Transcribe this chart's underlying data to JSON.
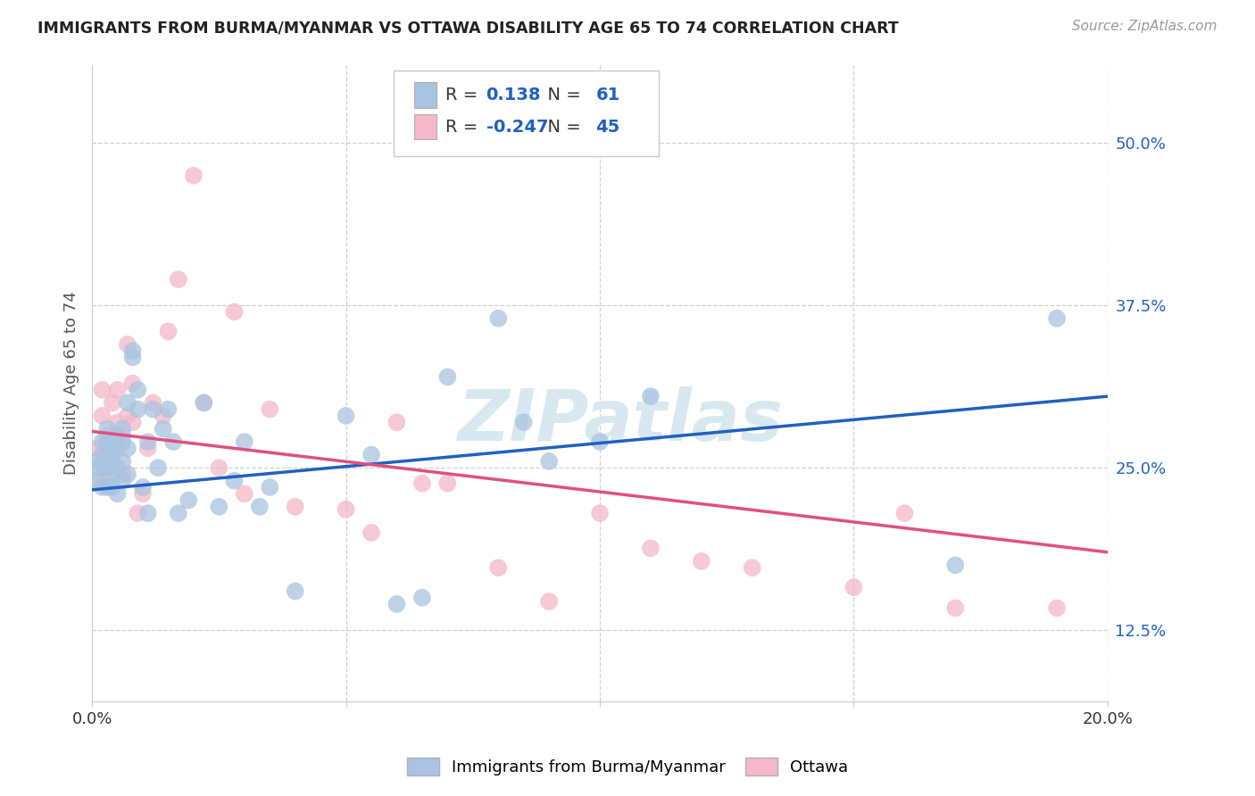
{
  "title": "IMMIGRANTS FROM BURMA/MYANMAR VS OTTAWA DISABILITY AGE 65 TO 74 CORRELATION CHART",
  "source": "Source: ZipAtlas.com",
  "ylabel": "Disability Age 65 to 74",
  "blue_label": "Immigrants from Burma/Myanmar",
  "pink_label": "Ottawa",
  "blue_R": 0.138,
  "blue_N": 61,
  "pink_R": -0.247,
  "pink_N": 45,
  "xlim": [
    0.0,
    0.2
  ],
  "ylim": [
    0.07,
    0.56
  ],
  "yticks": [
    0.125,
    0.25,
    0.375,
    0.5
  ],
  "ytick_labels": [
    "12.5%",
    "25.0%",
    "37.5%",
    "50.0%"
  ],
  "xticks": [
    0.0,
    0.05,
    0.1,
    0.15,
    0.2
  ],
  "xtick_labels": [
    "0.0%",
    "",
    "",
    "",
    "20.0%"
  ],
  "blue_line_x": [
    0.0,
    0.2
  ],
  "blue_line_y": [
    0.233,
    0.305
  ],
  "pink_line_x": [
    0.0,
    0.2
  ],
  "pink_line_y": [
    0.278,
    0.185
  ],
  "blue_x": [
    0.001,
    0.001,
    0.001,
    0.002,
    0.002,
    0.002,
    0.002,
    0.003,
    0.003,
    0.003,
    0.003,
    0.003,
    0.004,
    0.004,
    0.004,
    0.004,
    0.004,
    0.005,
    0.005,
    0.005,
    0.005,
    0.006,
    0.006,
    0.006,
    0.006,
    0.007,
    0.007,
    0.007,
    0.008,
    0.008,
    0.009,
    0.009,
    0.01,
    0.011,
    0.011,
    0.012,
    0.013,
    0.014,
    0.015,
    0.016,
    0.017,
    0.019,
    0.022,
    0.025,
    0.028,
    0.03,
    0.033,
    0.035,
    0.04,
    0.05,
    0.055,
    0.06,
    0.065,
    0.07,
    0.08,
    0.085,
    0.09,
    0.1,
    0.11,
    0.17,
    0.19
  ],
  "blue_y": [
    0.24,
    0.25,
    0.255,
    0.235,
    0.25,
    0.26,
    0.27,
    0.235,
    0.25,
    0.26,
    0.27,
    0.28,
    0.235,
    0.245,
    0.255,
    0.265,
    0.27,
    0.23,
    0.25,
    0.265,
    0.275,
    0.24,
    0.255,
    0.27,
    0.28,
    0.245,
    0.265,
    0.3,
    0.335,
    0.34,
    0.295,
    0.31,
    0.235,
    0.215,
    0.27,
    0.295,
    0.25,
    0.28,
    0.295,
    0.27,
    0.215,
    0.225,
    0.3,
    0.22,
    0.24,
    0.27,
    0.22,
    0.235,
    0.155,
    0.29,
    0.26,
    0.145,
    0.15,
    0.32,
    0.365,
    0.285,
    0.255,
    0.27,
    0.305,
    0.175,
    0.365
  ],
  "pink_x": [
    0.001,
    0.001,
    0.002,
    0.002,
    0.003,
    0.003,
    0.004,
    0.004,
    0.005,
    0.005,
    0.006,
    0.006,
    0.007,
    0.007,
    0.008,
    0.008,
    0.009,
    0.01,
    0.011,
    0.012,
    0.014,
    0.015,
    0.017,
    0.02,
    0.022,
    0.025,
    0.028,
    0.03,
    0.035,
    0.04,
    0.05,
    0.055,
    0.06,
    0.065,
    0.07,
    0.08,
    0.09,
    0.1,
    0.11,
    0.12,
    0.13,
    0.15,
    0.16,
    0.17,
    0.19
  ],
  "pink_y": [
    0.24,
    0.265,
    0.29,
    0.31,
    0.24,
    0.275,
    0.26,
    0.3,
    0.285,
    0.31,
    0.245,
    0.275,
    0.29,
    0.345,
    0.285,
    0.315,
    0.215,
    0.23,
    0.265,
    0.3,
    0.29,
    0.355,
    0.395,
    0.475,
    0.3,
    0.25,
    0.37,
    0.23,
    0.295,
    0.22,
    0.218,
    0.2,
    0.285,
    0.238,
    0.238,
    0.173,
    0.147,
    0.215,
    0.188,
    0.178,
    0.173,
    0.158,
    0.215,
    0.142,
    0.142
  ],
  "blue_color": "#a8c4e0",
  "pink_color": "#f4b8c8",
  "blue_line_color": "#2060c0",
  "pink_line_color": "#e05080",
  "bg_color": "#ffffff",
  "grid_color": "#d0d0d0",
  "title_color": "#222222",
  "watermark": "ZIPatlas",
  "watermark_color": "#d8e8f0"
}
